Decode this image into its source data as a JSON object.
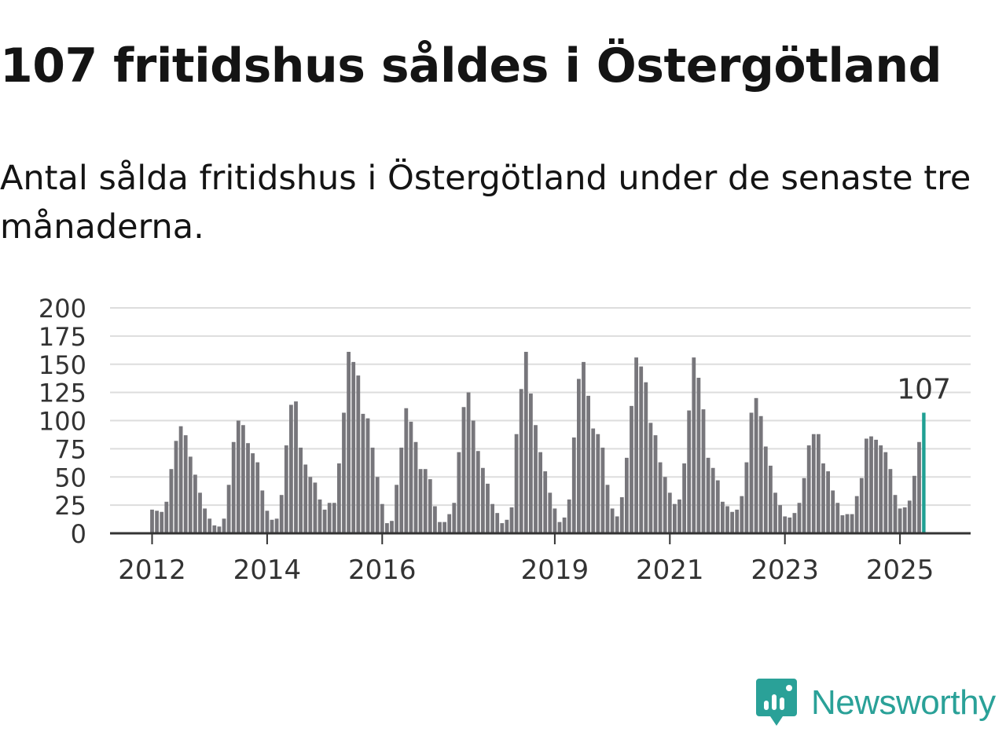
{
  "title": "107 fritidshus såldes i Östergötland",
  "subtitle": "Antal sålda fritidshus i Östergötland under de senaste tre månaderna.",
  "brand": {
    "name": "Newsworthy",
    "color": "#2aa198",
    "icon": "newsworthy-logo-icon"
  },
  "colors": {
    "bar": "#77767b",
    "highlight": "#1fa093",
    "grid": "#dddddd",
    "axis": "#333333"
  },
  "chart_data": {
    "type": "bar",
    "ylim": [
      0,
      200
    ],
    "yticks": [
      0,
      25,
      50,
      75,
      100,
      125,
      150,
      175,
      200
    ],
    "xtick_labels": [
      "2012",
      "2014",
      "2016",
      "2019",
      "2021",
      "2023",
      "2025"
    ],
    "grid": true,
    "highlight_label": "107",
    "x_start": "2012-01",
    "x_end": "2025-06",
    "values": [
      21,
      20,
      19,
      28,
      57,
      82,
      95,
      87,
      68,
      52,
      36,
      22,
      13,
      7,
      6,
      13,
      43,
      81,
      100,
      96,
      80,
      71,
      63,
      38,
      20,
      12,
      13,
      34,
      78,
      114,
      117,
      76,
      61,
      50,
      45,
      30,
      21,
      27,
      27,
      62,
      107,
      161,
      152,
      140,
      106,
      102,
      76,
      50,
      26,
      9,
      11,
      43,
      76,
      111,
      99,
      81,
      57,
      57,
      48,
      24,
      10,
      10,
      17,
      27,
      72,
      112,
      125,
      100,
      73,
      58,
      44,
      26,
      18,
      9,
      12,
      23,
      88,
      128,
      161,
      124,
      96,
      72,
      55,
      36,
      22,
      10,
      14,
      30,
      85,
      137,
      152,
      122,
      93,
      88,
      76,
      43,
      22,
      15,
      32,
      67,
      113,
      156,
      148,
      134,
      98,
      87,
      63,
      50,
      36,
      26,
      30,
      62,
      109,
      156,
      138,
      110,
      67,
      58,
      47,
      28,
      24,
      19,
      21,
      33,
      63,
      107,
      120,
      104,
      77,
      60,
      36,
      25,
      15,
      14,
      18,
      27,
      49,
      78,
      88,
      88,
      62,
      55,
      38,
      27,
      16,
      17,
      17,
      33,
      49,
      84,
      86,
      83,
      78,
      72,
      57,
      34,
      22,
      23,
      29,
      51,
      81,
      107
    ]
  }
}
